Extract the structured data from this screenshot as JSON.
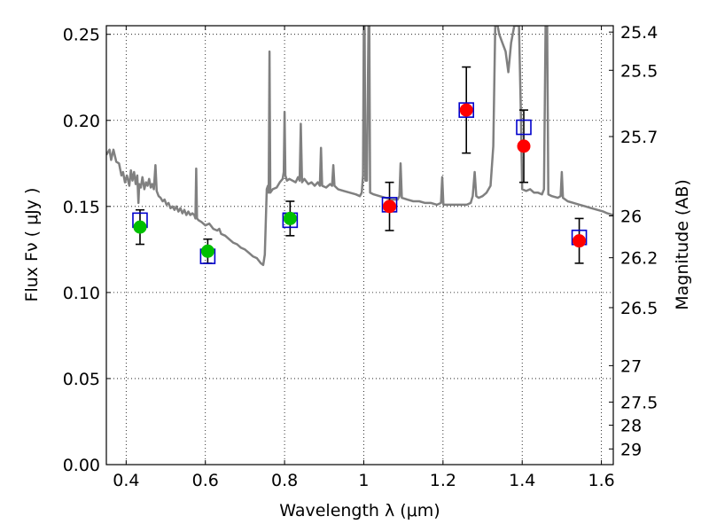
{
  "chart_data": {
    "type": "scatter",
    "xlabel": "Wavelength  λ (μm)",
    "ylabel": "Flux  Fν  ( μJy )",
    "ylabel_right": "Magnitude (AB)",
    "xlim": [
      0.35,
      1.63
    ],
    "ylim": [
      0.0,
      0.255
    ],
    "grid": true,
    "x_ticks": [
      0.4,
      0.6,
      0.8,
      1.0,
      1.2,
      1.4,
      1.6
    ],
    "x_tick_labels": [
      "0.4",
      "0.6",
      "0.8",
      "1",
      "1.2",
      "1.4",
      "1.6"
    ],
    "y_ticks": [
      0.0,
      0.05,
      0.1,
      0.15,
      0.2,
      0.25
    ],
    "y_tick_labels": [
      "0.00",
      "0.05",
      "0.10",
      "0.15",
      "0.20",
      "0.25"
    ],
    "right_ticks": [
      {
        "label": "25.4",
        "flux": 0.2513
      },
      {
        "label": "25.5",
        "flux": 0.2291
      },
      {
        "label": "25.7",
        "flux": 0.1906
      },
      {
        "label": "26",
        "flux": 0.1445
      },
      {
        "label": "26.2",
        "flux": 0.1202
      },
      {
        "label": "26.5",
        "flux": 0.0912
      },
      {
        "label": "27",
        "flux": 0.0575
      },
      {
        "label": "27.5",
        "flux": 0.0363
      },
      {
        "label": "28",
        "flux": 0.0229
      },
      {
        "label": "29",
        "flux": 0.0091
      }
    ],
    "colors": {
      "model": "#808080",
      "green": "#00c000",
      "red": "#ff0000",
      "square": "#0000cc",
      "errorbar": "#000000"
    },
    "model_spectrum": [
      [
        0.35,
        0.18
      ],
      [
        0.358,
        0.183
      ],
      [
        0.362,
        0.177
      ],
      [
        0.368,
        0.183
      ],
      [
        0.375,
        0.176
      ],
      [
        0.382,
        0.175
      ],
      [
        0.388,
        0.168
      ],
      [
        0.392,
        0.17
      ],
      [
        0.397,
        0.164
      ],
      [
        0.402,
        0.168
      ],
      [
        0.408,
        0.162
      ],
      [
        0.412,
        0.171
      ],
      [
        0.416,
        0.165
      ],
      [
        0.42,
        0.17
      ],
      [
        0.424,
        0.163
      ],
      [
        0.428,
        0.168
      ],
      [
        0.431,
        0.152
      ],
      [
        0.433,
        0.163
      ],
      [
        0.437,
        0.161
      ],
      [
        0.441,
        0.167
      ],
      [
        0.446,
        0.16
      ],
      [
        0.45,
        0.164
      ],
      [
        0.454,
        0.162
      ],
      [
        0.458,
        0.166
      ],
      [
        0.462,
        0.161
      ],
      [
        0.466,
        0.163
      ],
      [
        0.47,
        0.16
      ],
      [
        0.474,
        0.174
      ],
      [
        0.477,
        0.159
      ],
      [
        0.482,
        0.156
      ],
      [
        0.487,
        0.155
      ],
      [
        0.492,
        0.153
      ],
      [
        0.497,
        0.154
      ],
      [
        0.502,
        0.151
      ],
      [
        0.507,
        0.152
      ],
      [
        0.512,
        0.149
      ],
      [
        0.517,
        0.15
      ],
      [
        0.522,
        0.148
      ],
      [
        0.527,
        0.15
      ],
      [
        0.532,
        0.147
      ],
      [
        0.537,
        0.149
      ],
      [
        0.542,
        0.146
      ],
      [
        0.547,
        0.148
      ],
      [
        0.552,
        0.145
      ],
      [
        0.557,
        0.147
      ],
      [
        0.562,
        0.145
      ],
      [
        0.567,
        0.146
      ],
      [
        0.572,
        0.145
      ],
      [
        0.575,
        0.143
      ],
      [
        0.577,
        0.172
      ],
      [
        0.579,
        0.143
      ],
      [
        0.583,
        0.142
      ],
      [
        0.59,
        0.141
      ],
      [
        0.6,
        0.139
      ],
      [
        0.61,
        0.14
      ],
      [
        0.62,
        0.137
      ],
      [
        0.63,
        0.136
      ],
      [
        0.635,
        0.137
      ],
      [
        0.64,
        0.134
      ],
      [
        0.65,
        0.133
      ],
      [
        0.66,
        0.131
      ],
      [
        0.67,
        0.129
      ],
      [
        0.68,
        0.128
      ],
      [
        0.69,
        0.126
      ],
      [
        0.7,
        0.125
      ],
      [
        0.71,
        0.123
      ],
      [
        0.72,
        0.121
      ],
      [
        0.73,
        0.12
      ],
      [
        0.74,
        0.117
      ],
      [
        0.746,
        0.116
      ],
      [
        0.75,
        0.122
      ],
      [
        0.755,
        0.16
      ],
      [
        0.758,
        0.162
      ],
      [
        0.76,
        0.158
      ],
      [
        0.762,
        0.24
      ],
      [
        0.764,
        0.158
      ],
      [
        0.77,
        0.16
      ],
      [
        0.78,
        0.161
      ],
      [
        0.788,
        0.164
      ],
      [
        0.795,
        0.166
      ],
      [
        0.798,
        0.17
      ],
      [
        0.8,
        0.205
      ],
      [
        0.802,
        0.168
      ],
      [
        0.806,
        0.165
      ],
      [
        0.812,
        0.166
      ],
      [
        0.82,
        0.165
      ],
      [
        0.828,
        0.164
      ],
      [
        0.834,
        0.167
      ],
      [
        0.838,
        0.165
      ],
      [
        0.841,
        0.198
      ],
      [
        0.844,
        0.164
      ],
      [
        0.85,
        0.166
      ],
      [
        0.86,
        0.163
      ],
      [
        0.868,
        0.164
      ],
      [
        0.876,
        0.162
      ],
      [
        0.884,
        0.164
      ],
      [
        0.889,
        0.162
      ],
      [
        0.892,
        0.184
      ],
      [
        0.895,
        0.162
      ],
      [
        0.905,
        0.161
      ],
      [
        0.915,
        0.163
      ],
      [
        0.92,
        0.162
      ],
      [
        0.923,
        0.174
      ],
      [
        0.926,
        0.162
      ],
      [
        0.935,
        0.16
      ],
      [
        0.95,
        0.159
      ],
      [
        0.965,
        0.158
      ],
      [
        0.98,
        0.157
      ],
      [
        0.99,
        0.156
      ],
      [
        0.995,
        0.158
      ],
      [
        0.998,
        0.168
      ],
      [
        1.0,
        0.255
      ],
      [
        1.002,
        0.255
      ],
      [
        1.004,
        0.165
      ],
      [
        1.008,
        0.165
      ],
      [
        1.012,
        0.255
      ],
      [
        1.014,
        0.255
      ],
      [
        1.016,
        0.158
      ],
      [
        1.025,
        0.157
      ],
      [
        1.04,
        0.156
      ],
      [
        1.055,
        0.155
      ],
      [
        1.07,
        0.154
      ],
      [
        1.085,
        0.154
      ],
      [
        1.09,
        0.156
      ],
      [
        1.093,
        0.175
      ],
      [
        1.096,
        0.155
      ],
      [
        1.11,
        0.154
      ],
      [
        1.125,
        0.153
      ],
      [
        1.14,
        0.153
      ],
      [
        1.155,
        0.152
      ],
      [
        1.17,
        0.152
      ],
      [
        1.185,
        0.151
      ],
      [
        1.195,
        0.152
      ],
      [
        1.198,
        0.167
      ],
      [
        1.201,
        0.151
      ],
      [
        1.215,
        0.151
      ],
      [
        1.23,
        0.151
      ],
      [
        1.245,
        0.151
      ],
      [
        1.26,
        0.151
      ],
      [
        1.27,
        0.152
      ],
      [
        1.275,
        0.156
      ],
      [
        1.28,
        0.17
      ],
      [
        1.284,
        0.156
      ],
      [
        1.29,
        0.155
      ],
      [
        1.3,
        0.156
      ],
      [
        1.31,
        0.158
      ],
      [
        1.32,
        0.162
      ],
      [
        1.327,
        0.185
      ],
      [
        1.332,
        0.255
      ],
      [
        1.338,
        0.255
      ],
      [
        1.342,
        0.25
      ],
      [
        1.35,
        0.245
      ],
      [
        1.358,
        0.24
      ],
      [
        1.365,
        0.228
      ],
      [
        1.368,
        0.235
      ],
      [
        1.372,
        0.245
      ],
      [
        1.38,
        0.255
      ],
      [
        1.392,
        0.255
      ],
      [
        1.397,
        0.2
      ],
      [
        1.4,
        0.16
      ],
      [
        1.41,
        0.159
      ],
      [
        1.42,
        0.16
      ],
      [
        1.43,
        0.158
      ],
      [
        1.44,
        0.158
      ],
      [
        1.45,
        0.157
      ],
      [
        1.455,
        0.16
      ],
      [
        1.459,
        0.255
      ],
      [
        1.463,
        0.255
      ],
      [
        1.466,
        0.157
      ],
      [
        1.475,
        0.156
      ],
      [
        1.49,
        0.155
      ],
      [
        1.497,
        0.156
      ],
      [
        1.5,
        0.17
      ],
      [
        1.503,
        0.155
      ],
      [
        1.515,
        0.153
      ],
      [
        1.53,
        0.152
      ],
      [
        1.545,
        0.151
      ],
      [
        1.56,
        0.15
      ],
      [
        1.575,
        0.149
      ],
      [
        1.59,
        0.148
      ],
      [
        1.605,
        0.147
      ],
      [
        1.615,
        0.146
      ],
      [
        1.63,
        0.145
      ]
    ],
    "squares": [
      {
        "x": 0.435,
        "y": 0.142
      },
      {
        "x": 0.606,
        "y": 0.121
      },
      {
        "x": 0.814,
        "y": 0.142
      },
      {
        "x": 1.065,
        "y": 0.151
      },
      {
        "x": 1.259,
        "y": 0.206
      },
      {
        "x": 1.404,
        "y": 0.196
      },
      {
        "x": 1.544,
        "y": 0.132
      }
    ],
    "points": [
      {
        "x": 0.435,
        "y": 0.138,
        "yerr": 0.01,
        "color": "green"
      },
      {
        "x": 0.606,
        "y": 0.124,
        "yerr": 0.007,
        "color": "green"
      },
      {
        "x": 0.814,
        "y": 0.143,
        "yerr": 0.01,
        "color": "green"
      },
      {
        "x": 1.065,
        "y": 0.15,
        "yerr": 0.014,
        "color": "red"
      },
      {
        "x": 1.259,
        "y": 0.206,
        "yerr": 0.025,
        "color": "red"
      },
      {
        "x": 1.404,
        "y": 0.185,
        "yerr": 0.021,
        "color": "red"
      },
      {
        "x": 1.544,
        "y": 0.13,
        "yerr": 0.013,
        "color": "red"
      }
    ]
  }
}
